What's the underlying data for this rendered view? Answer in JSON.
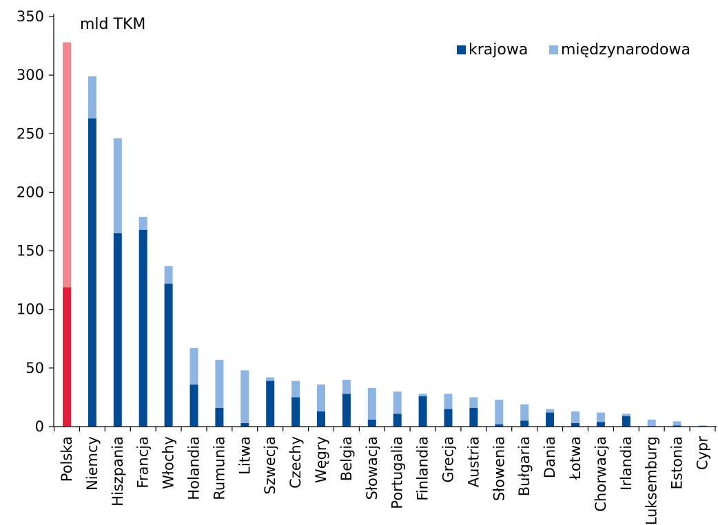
{
  "chart_data": {
    "type": "bar",
    "stacked": true,
    "unit_label": "mld TKM",
    "categories": [
      "Polska",
      "Niemcy",
      "Hiszpania",
      "Francja",
      "Włochy",
      "Holandia",
      "Rumunia",
      "Litwa",
      "Szwecja",
      "Czechy",
      "Węgry",
      "Belgia",
      "Słowacja",
      "Portugalia",
      "Finlandia",
      "Grecja",
      "Austria",
      "Słowenia",
      "Bułgaria",
      "Dania",
      "Łotwa",
      "Chorwacja",
      "Irlandia",
      "Luksemburg",
      "Estonia",
      "Cypr"
    ],
    "series": [
      {
        "name": "krajowa",
        "values": [
          119,
          263,
          165,
          168,
          122,
          36,
          16,
          3,
          39,
          25,
          13,
          28,
          6,
          11,
          26,
          15,
          16,
          2,
          5,
          12,
          3,
          4,
          9,
          0.5,
          1,
          0.5
        ],
        "color": "#004b93"
      },
      {
        "name": "międzynarodowa",
        "values": [
          209,
          36,
          81,
          11,
          15,
          31,
          41,
          45,
          3,
          14,
          23,
          12,
          27,
          19,
          2,
          13,
          9,
          21,
          14,
          3,
          10,
          8,
          2,
          5.5,
          3.5,
          0.5
        ],
        "color": "#8eb4e3"
      }
    ],
    "highlight": {
      "category": "Polska",
      "colors": [
        "#e31e3a",
        "#f1878f"
      ]
    },
    "yticks": [
      0,
      50,
      100,
      150,
      200,
      250,
      300,
      350
    ],
    "ylim": [
      0,
      350
    ],
    "legend_position": "top-right",
    "grid": false
  }
}
